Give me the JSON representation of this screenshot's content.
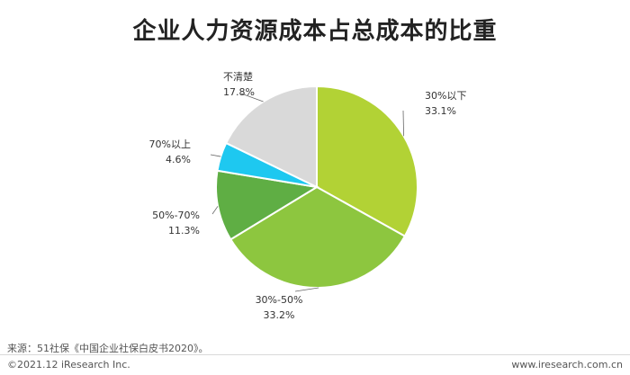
{
  "chart_data": {
    "type": "pie",
    "title": "企业人力资源成本占总成本的比重",
    "slices": [
      {
        "label": "30%以下",
        "value": 33.1,
        "value_text": "33.1%",
        "color": "#b2d235"
      },
      {
        "label": "30%-50%",
        "value": 33.2,
        "value_text": "33.2%",
        "color": "#8dc63f"
      },
      {
        "label": "50%-70%",
        "value": 11.3,
        "value_text": "11.3%",
        "color": "#5fae44"
      },
      {
        "label": "70%以上",
        "value": 4.6,
        "value_text": "4.6%",
        "color": "#1ec8f0"
      },
      {
        "label": "不清楚",
        "value": 17.8,
        "value_text": "17.8%",
        "color": "#d9d9d9"
      }
    ]
  },
  "footer": {
    "source": "来源：51社保《中国企业社保白皮书2020》。",
    "copyright": "©2021.12 iResearch Inc.",
    "website": "www.iresearch.com.cn"
  }
}
